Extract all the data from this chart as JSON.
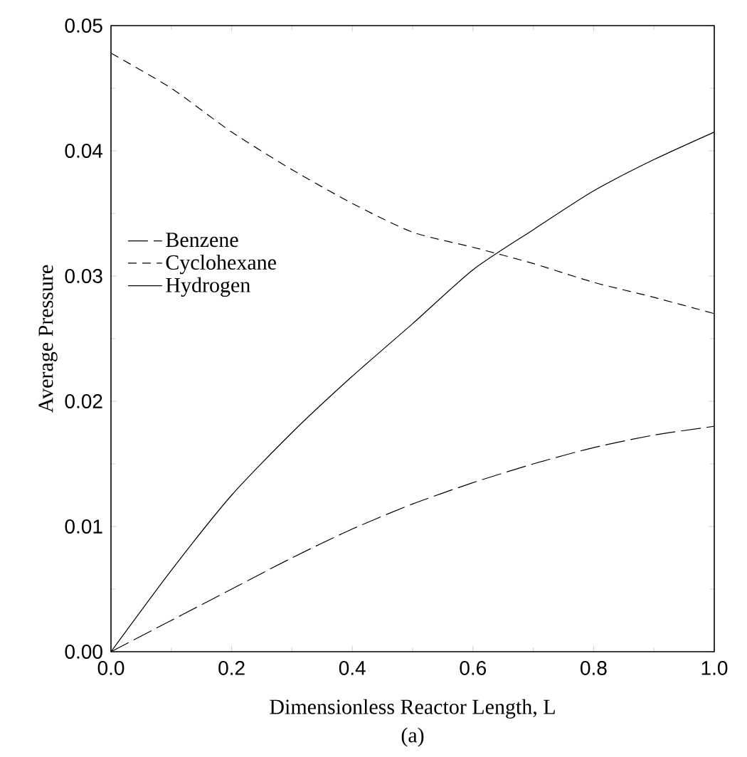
{
  "chart_data": {
    "type": "line",
    "xlabel": "Dimensionless Reactor Length, L",
    "ylabel": "Average Pressure",
    "annotations": [
      "(a)"
    ],
    "x": [
      0,
      0.1,
      0.2,
      0.3,
      0.4,
      0.5,
      0.6,
      0.7,
      0.8,
      0.9,
      1.0
    ],
    "series": [
      {
        "name": "Benzene",
        "color": "#000000",
        "line_style": "dashed",
        "values": [
          0,
          0.0025,
          0.005,
          0.0075,
          0.0098,
          0.0118,
          0.0135,
          0.015,
          0.0163,
          0.0173,
          0.018
        ]
      },
      {
        "name": "Cyclohexane",
        "color": "#000000",
        "line_style": "dashed",
        "values": [
          0.0478,
          0.045,
          0.0415,
          0.0385,
          0.0358,
          0.0335,
          0.0323,
          0.031,
          0.0295,
          0.0283,
          0.027
        ]
      },
      {
        "name": "Hydrogen",
        "color": "#000000",
        "line_style": "solid",
        "values": [
          0,
          0.0065,
          0.0125,
          0.0175,
          0.022,
          0.0262,
          0.0305,
          0.0337,
          0.0368,
          0.0393,
          0.0415
        ]
      }
    ],
    "xlim": [
      0,
      1
    ],
    "xticks": [
      {
        "value": 0,
        "label": "0.0"
      },
      {
        "value": 0.2,
        "label": "0.2"
      },
      {
        "value": 0.4,
        "label": "0.4"
      },
      {
        "value": 0.6,
        "label": "0.6"
      },
      {
        "value": 0.8,
        "label": "0.8"
      },
      {
        "value": 1,
        "label": "1.0"
      }
    ],
    "ylim": [
      0,
      0.05
    ],
    "yticks": [
      {
        "value": 0,
        "label": "0.00"
      },
      {
        "value": 0.01,
        "label": "0.01"
      },
      {
        "value": 0.02,
        "label": "0.02"
      },
      {
        "value": 0.03,
        "label": "0.03"
      },
      {
        "value": 0.04,
        "label": "0.04"
      },
      {
        "value": 0.05,
        "label": "0.05"
      }
    ],
    "legend": "left",
    "grid": false,
    "marker": "none"
  }
}
